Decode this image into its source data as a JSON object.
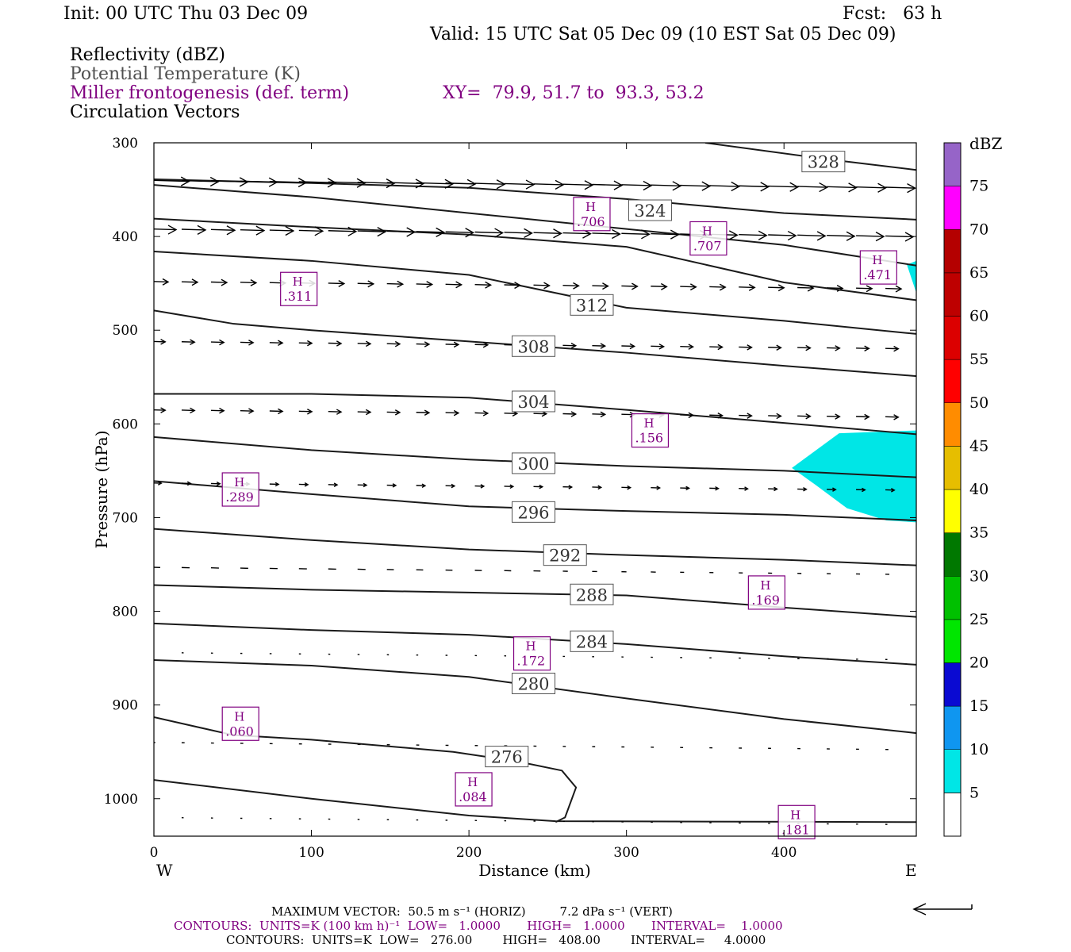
{
  "header": {
    "init": "Init: 00 UTC Thu 03 Dec 09",
    "fcst": "Fcst:   63 h",
    "valid": "Valid: 15 UTC Sat 05 Dec 09 (10 EST Sat 05 Dec 09)",
    "legend_reflectivity": "Reflectivity (dBZ)",
    "legend_theta": "Potential Temperature (K)",
    "legend_frontogenesis": "Miller frontogenesis (def. term)",
    "xy": "XY=  79.9, 51.7 to  93.3, 53.2",
    "legend_vectors": "Circulation Vectors"
  },
  "colorbar": {
    "title": "dBZ",
    "levels": [
      "5",
      "10",
      "15",
      "20",
      "25",
      "30",
      "35",
      "40",
      "45",
      "50",
      "55",
      "60",
      "65",
      "70",
      "75"
    ],
    "colors": [
      "#00e6e6",
      "#0f96f0",
      "#0a0ad2",
      "#00e600",
      "#00c000",
      "#007800",
      "#ffff00",
      "#e6be00",
      "#ff8c00",
      "#ff0000",
      "#dc0000",
      "#be0000",
      "#b40000",
      "#ff00ff",
      "#9664c8"
    ]
  },
  "footer": {
    "max_vector": "MAXIMUM VECTOR:  50.5 m s⁻¹ (HORIZ)         7.2 dPa s⁻¹ (VERT)",
    "contours_front": "CONTOURS:  UNITS=K (100 km h)⁻¹  LOW=   1.0000       HIGH=   1.0000       INTERVAL=    1.0000",
    "contours_theta": "CONTOURS:  UNITS=K  LOW=   276.00        HIGH=   408.00        INTERVAL=     4.0000"
  },
  "chart_data": {
    "type": "cross-section",
    "xlabel": "Distance (km)",
    "ylabel": "Pressure (hPa)",
    "xlim": [
      0,
      484
    ],
    "ylim": [
      300,
      1040
    ],
    "x_ticks": [
      0,
      100,
      200,
      300,
      400
    ],
    "y_ticks": [
      300,
      400,
      500,
      600,
      700,
      800,
      900,
      1000
    ],
    "x_end_labels": {
      "left": "W",
      "right": "E"
    },
    "theta_contours": [
      {
        "label": "328",
        "label_at": [
          425,
          320
        ],
        "points": [
          [
            350,
            300
          ],
          [
            425,
            317
          ],
          [
            484,
            329
          ]
        ]
      },
      {
        "label": "324",
        "label_at": [
          315,
          372
        ],
        "points": [
          [
            0,
            339
          ],
          [
            100,
            343
          ],
          [
            200,
            348
          ],
          [
            300,
            360
          ],
          [
            400,
            375
          ],
          [
            484,
            382
          ]
        ]
      },
      {
        "label": "",
        "label_at": null,
        "points": [
          [
            0,
            345
          ],
          [
            100,
            358
          ],
          [
            200,
            375
          ],
          [
            300,
            392
          ],
          [
            400,
            409
          ],
          [
            484,
            431
          ]
        ]
      },
      {
        "label": "",
        "label_at": null,
        "points": [
          [
            0,
            381
          ],
          [
            100,
            390
          ],
          [
            200,
            398
          ],
          [
            300,
            411
          ],
          [
            400,
            449
          ],
          [
            484,
            468
          ]
        ]
      },
      {
        "label": "312",
        "label_at": [
          278,
          473
        ],
        "points": [
          [
            0,
            416
          ],
          [
            100,
            426
          ],
          [
            200,
            441
          ],
          [
            300,
            476
          ],
          [
            400,
            490
          ],
          [
            484,
            504
          ]
        ]
      },
      {
        "label": "308",
        "label_at": [
          241,
          517
        ],
        "points": [
          [
            0,
            479
          ],
          [
            50,
            493
          ],
          [
            100,
            500
          ],
          [
            200,
            512
          ],
          [
            300,
            524
          ],
          [
            400,
            538
          ],
          [
            484,
            549
          ]
        ]
      },
      {
        "label": "304",
        "label_at": [
          241,
          576
        ],
        "points": [
          [
            0,
            568
          ],
          [
            100,
            568
          ],
          [
            200,
            572
          ],
          [
            300,
            585
          ],
          [
            400,
            599
          ],
          [
            484,
            611
          ]
        ]
      },
      {
        "label": "300",
        "label_at": [
          241,
          642
        ],
        "points": [
          [
            0,
            614
          ],
          [
            100,
            628
          ],
          [
            200,
            638
          ],
          [
            300,
            645
          ],
          [
            400,
            650
          ],
          [
            484,
            657
          ]
        ]
      },
      {
        "label": "296",
        "label_at": [
          241,
          694
        ],
        "points": [
          [
            0,
            661
          ],
          [
            100,
            675
          ],
          [
            200,
            688
          ],
          [
            300,
            693
          ],
          [
            400,
            697
          ],
          [
            484,
            703
          ]
        ]
      },
      {
        "label": "292",
        "label_at": [
          261,
          740
        ],
        "points": [
          [
            0,
            712
          ],
          [
            100,
            724
          ],
          [
            200,
            734
          ],
          [
            300,
            740
          ],
          [
            400,
            745
          ],
          [
            484,
            751
          ]
        ]
      },
      {
        "label": "288",
        "label_at": [
          278,
          782
        ],
        "points": [
          [
            0,
            772
          ],
          [
            100,
            777
          ],
          [
            200,
            780
          ],
          [
            300,
            783
          ],
          [
            400,
            796
          ],
          [
            484,
            806
          ]
        ]
      },
      {
        "label": "284",
        "label_at": [
          278,
          832
        ],
        "points": [
          [
            0,
            813
          ],
          [
            100,
            820
          ],
          [
            200,
            825
          ],
          [
            300,
            835
          ],
          [
            400,
            848
          ],
          [
            484,
            857
          ]
        ]
      },
      {
        "label": "280",
        "label_at": [
          241,
          877
        ],
        "points": [
          [
            0,
            852
          ],
          [
            100,
            858
          ],
          [
            200,
            870
          ],
          [
            300,
            893
          ],
          [
            400,
            915
          ],
          [
            484,
            930
          ]
        ]
      },
      {
        "label": "276",
        "label_at": [
          224,
          955
        ],
        "points": [
          [
            0,
            913
          ],
          [
            50,
            932
          ],
          [
            100,
            937
          ],
          [
            190,
            950
          ],
          [
            230,
            960
          ],
          [
            259,
            970
          ],
          [
            268,
            988
          ],
          [
            261,
            1020
          ],
          [
            255,
            1025
          ]
        ]
      },
      {
        "label": "",
        "label_at": null,
        "points": [
          [
            0,
            980
          ],
          [
            100,
            1000
          ],
          [
            200,
            1018
          ],
          [
            255,
            1024
          ],
          [
            484,
            1025
          ]
        ]
      }
    ],
    "reflectivity_areas": [
      {
        "dbz": 5,
        "polygon": [
          [
            478,
            430
          ],
          [
            484,
            426
          ],
          [
            484,
            460
          ]
        ]
      },
      {
        "dbz": 5,
        "polygon": [
          [
            405,
            647
          ],
          [
            435,
            610
          ],
          [
            484,
            607
          ],
          [
            484,
            705
          ],
          [
            465,
            703
          ],
          [
            440,
            690
          ],
          [
            420,
            665
          ]
        ]
      }
    ],
    "frontogenesis_highs": [
      {
        "label": "H",
        "value": ".706",
        "at": [
          278,
          376
        ]
      },
      {
        "label": "H",
        "value": ".707",
        "at": [
          352,
          402
        ]
      },
      {
        "label": "H",
        "value": ".471",
        "at": [
          460,
          433
        ]
      },
      {
        "label": "H",
        "value": ".311",
        "at": [
          92,
          456
        ]
      },
      {
        "label": "H",
        "value": ".156",
        "at": [
          315,
          607
        ]
      },
      {
        "label": "H",
        "value": ".289",
        "at": [
          55,
          670
        ]
      },
      {
        "label": "H",
        "value": ".169",
        "at": [
          389,
          780
        ]
      },
      {
        "label": "H",
        "value": ".172",
        "at": [
          240,
          845
        ]
      },
      {
        "label": "H",
        "value": ".060",
        "at": [
          55,
          920
        ]
      },
      {
        "label": "H",
        "value": ".084",
        "at": [
          203,
          990
        ]
      },
      {
        "label": "H",
        "value": ".181",
        "at": [
          408,
          1025
        ]
      }
    ],
    "vector_rows": [
      {
        "p": 340,
        "u": [
          37,
          37,
          37,
          37,
          37,
          37,
          37,
          37,
          37,
          37,
          30,
          30,
          30,
          30,
          30,
          30,
          30,
          30,
          30,
          30,
          30,
          30,
          30,
          30,
          30,
          30
        ]
      },
      {
        "p": 392,
        "u": [
          24,
          24,
          24,
          24,
          24,
          24,
          28,
          28,
          28,
          28,
          28,
          28,
          28,
          28,
          28,
          28,
          28,
          28,
          28,
          28,
          28,
          28,
          28,
          28,
          28,
          28
        ]
      },
      {
        "p": 448,
        "u": [
          16,
          16,
          16,
          16,
          16,
          16,
          16,
          16,
          16,
          16,
          16,
          16,
          16,
          16,
          16,
          16,
          16,
          16,
          16,
          16,
          16,
          16,
          16,
          16,
          16,
          16
        ]
      },
      {
        "p": 512,
        "u": [
          13,
          13,
          13,
          13,
          13,
          13,
          13,
          13,
          13,
          13,
          13,
          13,
          13,
          13,
          13,
          13,
          13,
          13,
          13,
          13,
          13,
          13,
          13,
          13,
          13,
          13
        ]
      },
      {
        "p": 585,
        "u": [
          13,
          13,
          13,
          13,
          13,
          13,
          13,
          13,
          13,
          13,
          13,
          13,
          13,
          13,
          13,
          13,
          13,
          13,
          13,
          13,
          13,
          13,
          13,
          13,
          13,
          13
        ]
      },
      {
        "p": 663,
        "u": [
          9,
          9,
          9,
          9,
          9,
          9,
          9,
          9,
          9,
          9,
          9,
          9,
          9,
          9,
          9,
          9,
          9,
          9,
          9,
          9,
          9,
          9,
          9,
          9,
          9,
          9
        ]
      },
      {
        "p": 753,
        "u": [
          8,
          8,
          8,
          8,
          8,
          8,
          8,
          8,
          7,
          7,
          7,
          7,
          7,
          7,
          5,
          5,
          5,
          5,
          4,
          4,
          4,
          4,
          4,
          4,
          4,
          4
        ]
      },
      {
        "p": 844,
        "u": [
          2,
          2,
          2,
          2,
          2,
          2,
          2,
          2,
          2,
          2,
          2,
          2,
          2,
          2,
          2,
          2,
          2,
          2,
          2,
          2,
          2,
          2,
          2,
          2,
          2,
          2
        ]
      },
      {
        "p": 940,
        "u": [
          3,
          3,
          3,
          3,
          3,
          3,
          3,
          3,
          3,
          3,
          3,
          3,
          3,
          3,
          3,
          3,
          3,
          3,
          3,
          3,
          3,
          3,
          3,
          3,
          3,
          3
        ]
      },
      {
        "p": 1020,
        "u": [
          2,
          2,
          2,
          2,
          2,
          2,
          2,
          2,
          2,
          2,
          2,
          2,
          2,
          2,
          2,
          2,
          2,
          2,
          2,
          2,
          2,
          2,
          2,
          2,
          2,
          2
        ]
      }
    ]
  }
}
